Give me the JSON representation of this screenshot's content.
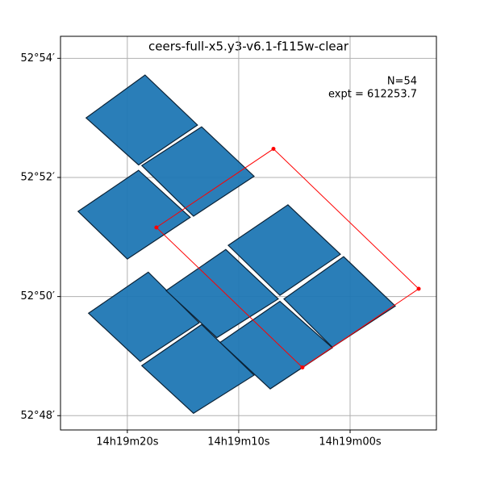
{
  "chart_data": {
    "type": "footprint",
    "title": "ceers-full-x5.y3-v6.1-f115w-clear",
    "annotations": [
      "N=54",
      "expt = 612253.7"
    ],
    "xlim": [
      26.0,
      -7.75
    ],
    "ylim": [
      47.76,
      54.37
    ],
    "grid": true,
    "xticks": [
      {
        "value": 20,
        "label": "14h19m20s"
      },
      {
        "value": 10,
        "label": "14h19m10s"
      },
      {
        "value": 0,
        "label": "14h19m00s"
      }
    ],
    "yticks": [
      {
        "value": 48,
        "label": "52°48′"
      },
      {
        "value": 50,
        "label": "52°50′"
      },
      {
        "value": 52,
        "label": "52°52′"
      },
      {
        "value": 54,
        "label": "52°54′"
      }
    ],
    "tile_color": "#1f77b4",
    "tiles": [
      {
        "x": [
          23.7,
          18.41,
          13.7,
          18.99
        ],
        "y": [
          53.0,
          53.72,
          52.88,
          52.21
        ]
      },
      {
        "x": [
          18.7,
          13.33,
          8.62,
          14.06
        ],
        "y": [
          52.2,
          52.85,
          52.02,
          51.35
        ]
      },
      {
        "x": [
          24.42,
          18.99,
          14.35,
          20.0
        ],
        "y": [
          51.43,
          52.12,
          51.33,
          50.63
        ]
      },
      {
        "x": [
          23.48,
          18.12,
          13.55,
          18.84
        ],
        "y": [
          49.72,
          50.41,
          49.56,
          48.91
        ]
      },
      {
        "x": [
          16.52,
          11.16,
          6.45,
          11.96
        ],
        "y": [
          50.1,
          50.79,
          49.96,
          49.31
        ]
      },
      {
        "x": [
          10.94,
          5.58,
          0.87,
          6.3
        ],
        "y": [
          50.86,
          51.54,
          50.71,
          50.02
        ]
      },
      {
        "x": [
          18.7,
          13.33,
          8.62,
          14.06
        ],
        "y": [
          48.84,
          49.53,
          48.68,
          48.04
        ]
      },
      {
        "x": [
          11.67,
          6.3,
          1.59,
          7.17
        ],
        "y": [
          49.23,
          49.92,
          49.14,
          48.45
        ]
      },
      {
        "x": [
          5.94,
          0.58,
          -4.06,
          1.59
        ],
        "y": [
          49.96,
          50.67,
          49.84,
          49.15
        ]
      }
    ],
    "outline": {
      "color": "#ff0000",
      "x": [
        17.39,
        6.88,
        -6.16,
        4.28
      ],
      "y": [
        51.16,
        52.48,
        50.13,
        48.81
      ]
    }
  }
}
